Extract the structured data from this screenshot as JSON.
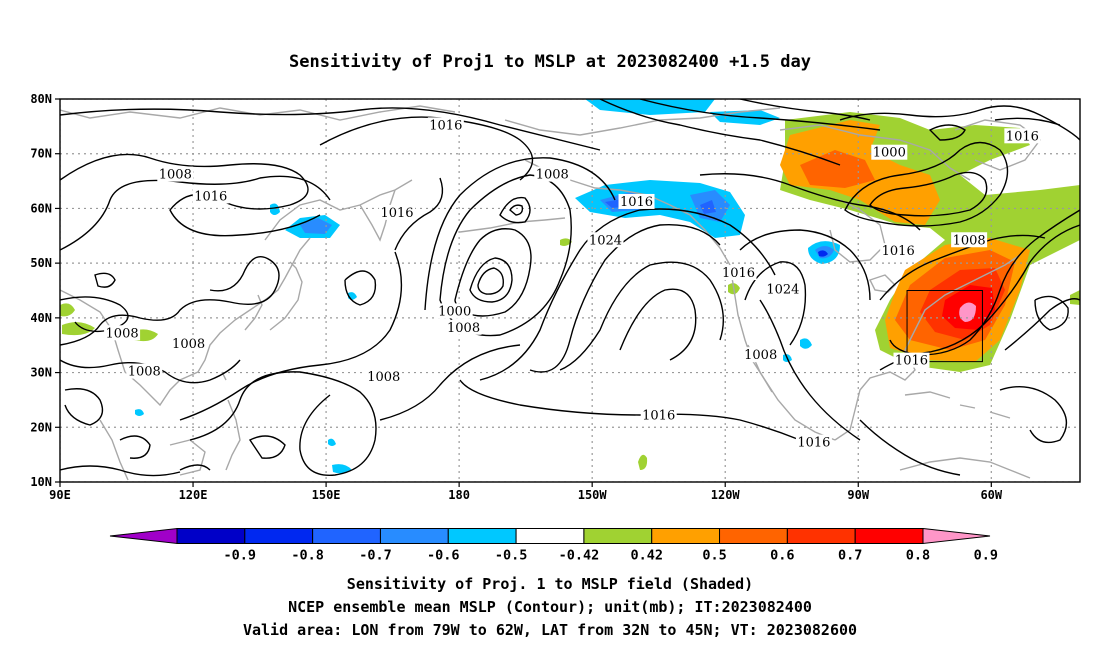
{
  "title": "Sensitivity of Proj1 to MSLP at 2023082400 +1.5 day",
  "map": {
    "lon_ticks": [
      "90E",
      "120E",
      "150E",
      "180",
      "150W",
      "120W",
      "90W",
      "60W"
    ],
    "lat_ticks": [
      "80N",
      "70N",
      "60N",
      "50N",
      "40N",
      "30N",
      "20N",
      "10N"
    ],
    "lon_range_deg_east": [
      90,
      320
    ],
    "lat_range_deg": [
      10,
      80
    ],
    "grid_lines": "dotted gray",
    "valid_area_box": {
      "lon": [
        -79,
        -62
      ],
      "lat": [
        32,
        45
      ]
    }
  },
  "contour_labels": [
    {
      "text": "1016",
      "lon": 177,
      "lat": 75
    },
    {
      "text": "1008",
      "lon": 116,
      "lat": 66
    },
    {
      "text": "1016",
      "lon": 124,
      "lat": 62
    },
    {
      "text": "1016",
      "lon": 166,
      "lat": 59
    },
    {
      "text": "1008",
      "lon": -159,
      "lat": 66
    },
    {
      "text": "1016",
      "lon": -140,
      "lat": 61
    },
    {
      "text": "1024",
      "lon": -147,
      "lat": 54
    },
    {
      "text": "1016",
      "lon": -117,
      "lat": 48
    },
    {
      "text": "1024",
      "lon": -107,
      "lat": 45
    },
    {
      "text": "1000",
      "lon": 179,
      "lat": 41
    },
    {
      "text": "1008",
      "lon": -179,
      "lat": 38
    },
    {
      "text": "1008",
      "lon": 104,
      "lat": 37
    },
    {
      "text": "1008",
      "lon": 119,
      "lat": 35
    },
    {
      "text": "1008",
      "lon": 109,
      "lat": 30
    },
    {
      "text": "1008",
      "lon": 163,
      "lat": 29
    },
    {
      "text": "1008",
      "lon": -112,
      "lat": 33
    },
    {
      "text": "1016",
      "lon": -135,
      "lat": 22
    },
    {
      "text": "1016",
      "lon": -100,
      "lat": 17
    },
    {
      "text": "1016",
      "lon": -78,
      "lat": 32
    },
    {
      "text": "1016",
      "lon": -81,
      "lat": 52
    },
    {
      "text": "1008",
      "lon": -65,
      "lat": 54
    },
    {
      "text": "1000",
      "lon": -83,
      "lat": 70
    },
    {
      "text": "1016",
      "lon": -53,
      "lat": 73
    }
  ],
  "colorbar": {
    "labels": [
      "-0.9",
      "-0.8",
      "-0.7",
      "-0.6",
      "-0.5",
      "-0.42",
      "0.42",
      "0.5",
      "0.6",
      "0.7",
      "0.8",
      "0.9"
    ],
    "colors": [
      "#a000c8",
      "#0000c8",
      "#0028f0",
      "#2064ff",
      "#288cff",
      "#00c8ff",
      "#ffffff",
      "#a0d232",
      "#ffa000",
      "#ff6400",
      "#ff3200",
      "#ff0000",
      "#ff96c8"
    ]
  },
  "captions": [
    "Sensitivity of Proj. 1 to MSLP field (Shaded)",
    "NCEP ensemble mean MSLP (Contour); unit(mb); IT:2023082400",
    "Valid area: LON from 79W to 62W, LAT from 32N to 45N; VT: 2023082600"
  ]
}
